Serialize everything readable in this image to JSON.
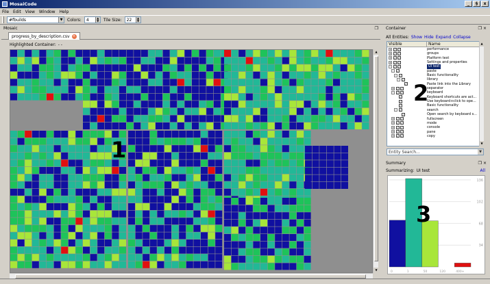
{
  "window": {
    "title": "MosaiCode",
    "min": "_",
    "max": "§",
    "close": "x"
  },
  "menu": [
    "File",
    "Edit",
    "View",
    "Window",
    "Help"
  ],
  "toolbar": {
    "dataset": "#fbuilds",
    "colors_label": "Colors:",
    "colors_value": "4",
    "tile_label": "Tile Size:",
    "tile_value": "22"
  },
  "mosaic": {
    "header": "Mosaic",
    "tab_label": "progress_by_description.csv",
    "highlighted_label": "Highlighted Container:",
    "highlighted_value": "- -",
    "colors": {
      "dark": "#1010a0",
      "teal": "#22b897",
      "green": "#1ec35a",
      "lime": "#a8e63a",
      "red": "#e01010",
      "gray": "#8f8f8f"
    }
  },
  "container_panel": {
    "title": "Container",
    "entities_label": "All Entities:",
    "links": [
      "Show",
      "Hide",
      "Expand",
      "Collapse"
    ],
    "columns": [
      "Visible",
      "Name"
    ],
    "rows": [
      {
        "name": "performance",
        "exp": "+",
        "checks": 2,
        "indent": 0
      },
      {
        "name": "groups",
        "exp": "+",
        "checks": 2,
        "indent": 0
      },
      {
        "name": "Platform test",
        "exp": "+",
        "checks": 2,
        "indent": 0
      },
      {
        "name": "Settings and properties",
        "exp": "+",
        "checks": 2,
        "indent": 0
      },
      {
        "name": "UI test",
        "exp": "-",
        "checks": 2,
        "indent": 0,
        "sel": true
      },
      {
        "name": "paste",
        "exp": "-",
        "checks": 1,
        "indent": 1
      },
      {
        "name": "Basic functionality",
        "exp": "-",
        "checks": 1,
        "indent": 2
      },
      {
        "name": "library",
        "exp": "-",
        "checks": 1,
        "indent": 3
      },
      {
        "name": "Paste link into the Library",
        "exp": "",
        "checks": 1,
        "indent": 4
      },
      {
        "name": "separator",
        "exp": "+",
        "checks": 2,
        "indent": 1
      },
      {
        "name": "keyboard",
        "exp": "-",
        "checks": 2,
        "indent": 1
      },
      {
        "name": "Keyboard shortcuts are act...",
        "exp": "",
        "checks": 1,
        "indent": 2
      },
      {
        "name": "Use keyboard+click to ope...",
        "exp": "",
        "checks": 1,
        "indent": 2
      },
      {
        "name": "Basic functionality",
        "exp": "",
        "checks": 1,
        "indent": 2
      },
      {
        "name": "search",
        "exp": "-",
        "checks": 1,
        "indent": 2
      },
      {
        "name": "Open search by keyboard s...",
        "exp": "",
        "checks": 1,
        "indent": 3
      },
      {
        "name": "fullscreen",
        "exp": "+",
        "checks": 2,
        "indent": 1
      },
      {
        "name": "mode",
        "exp": "+",
        "checks": 2,
        "indent": 1
      },
      {
        "name": "console",
        "exp": "+",
        "checks": 2,
        "indent": 1
      },
      {
        "name": "pane",
        "exp": "+",
        "checks": 2,
        "indent": 1
      },
      {
        "name": "copy",
        "exp": "+",
        "checks": 2,
        "indent": 1
      }
    ],
    "search_placeholder": "Entity Search..."
  },
  "summary_panel": {
    "title": "Summary",
    "summarizing_label": "Summarizing:",
    "summarizing_value": "UI test",
    "all_link": "All"
  },
  "chart_data": {
    "type": "bar",
    "categories": [
      "0",
      "1",
      "50",
      "120",
      "400+"
    ],
    "values": [
      73,
      138,
      72,
      0,
      6
    ],
    "colors": [
      "#1010a0",
      "#22b897",
      "#a8e63a",
      "#1ec35a",
      "#e01010"
    ],
    "ylim": [
      0,
      138
    ],
    "yticks": [
      34,
      68,
      102,
      136
    ],
    "title": "",
    "xlabel": "",
    "ylabel": ""
  },
  "annotations": [
    "1",
    "2",
    "3"
  ]
}
